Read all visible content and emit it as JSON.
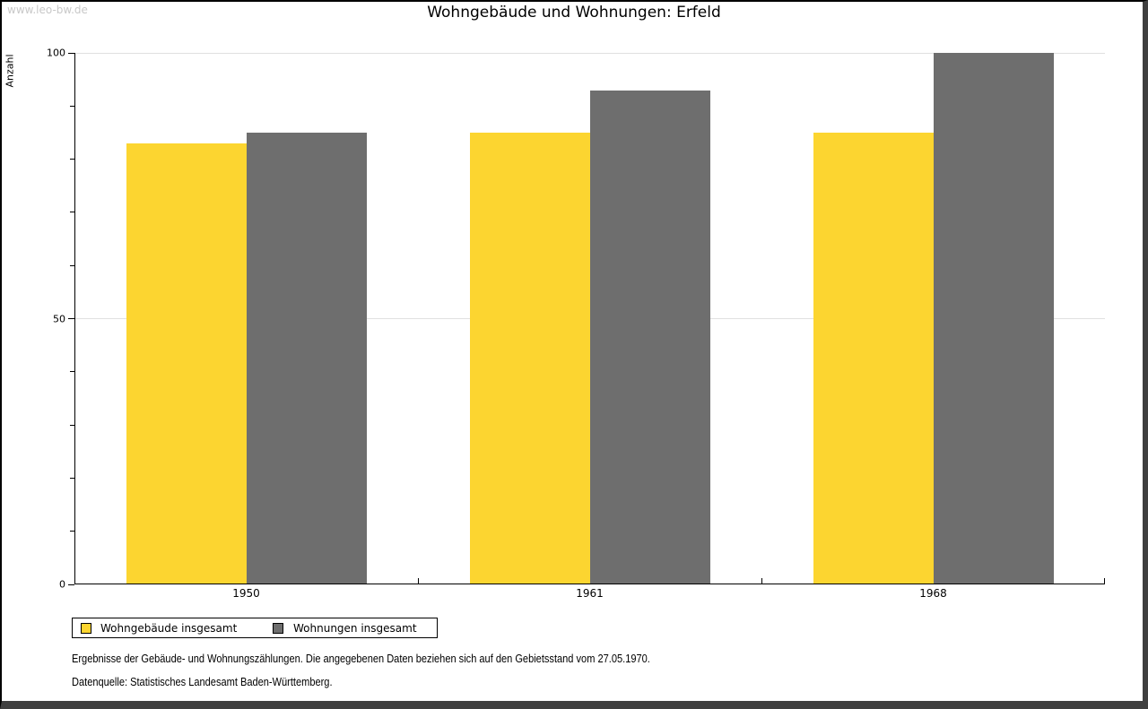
{
  "watermark": "www.leo-bw.de",
  "chart_data": {
    "type": "bar",
    "title": "Wohngebäude und Wohnungen: Erfeld",
    "ylabel": "Anzahl",
    "xlabel": "",
    "categories": [
      "1950",
      "1961",
      "1968"
    ],
    "series": [
      {
        "name": "Wohngebäude insgesamt",
        "color": "#FCD530",
        "values": [
          83,
          85,
          85
        ]
      },
      {
        "name": "Wohnungen insgesamt",
        "color": "#6E6E6E",
        "values": [
          85,
          93,
          100
        ]
      }
    ],
    "ylim": [
      0,
      100
    ],
    "yticks_major": [
      0,
      50,
      100
    ],
    "ytick_minor_step": 10,
    "gridlines": [
      50,
      100
    ],
    "grid": "horizontal-major-only",
    "legend_position": "bottom-left"
  },
  "footer": {
    "line1": "Ergebnisse der Gebäude- und Wohnungszählungen. Die angegebenen Daten beziehen sich auf den Gebietsstand vom 27.05.1970.",
    "line2": "Datenquelle: Statistisches Landesamt Baden-Württemberg."
  },
  "colors": {
    "bar_yellow": "#FCD530",
    "bar_gray": "#6E6E6E",
    "gridline": "#E0E0E0",
    "axis": "#000000",
    "watermark": "#C8C8C8",
    "frame": "#3F3F3F"
  }
}
